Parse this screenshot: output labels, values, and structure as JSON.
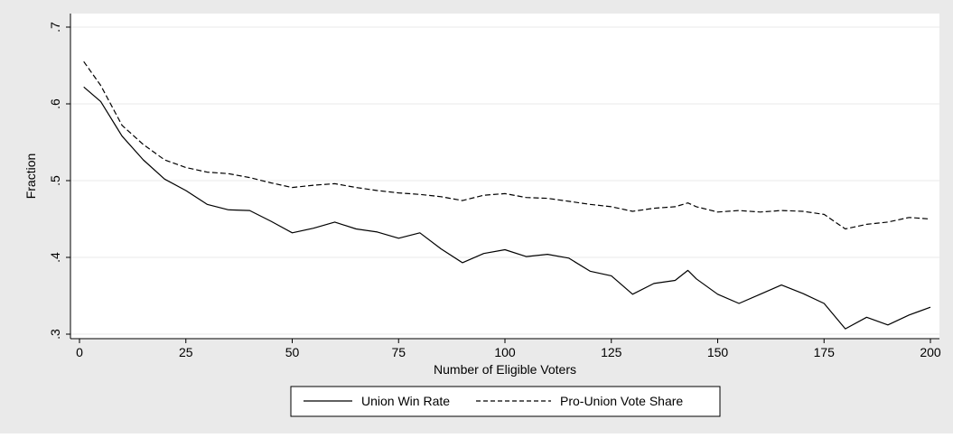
{
  "colors": {
    "outer_background": "#eaeaea",
    "plot_background": "#ffffff",
    "grid": "#eaeaea",
    "line": "#000000"
  },
  "chart_data": {
    "type": "line",
    "title": "",
    "xlabel": "Number of Eligible Voters",
    "ylabel": "Fraction",
    "xlim": [
      0,
      200
    ],
    "ylim": [
      0.3,
      0.7
    ],
    "x_ticks": [
      0,
      25,
      50,
      75,
      100,
      125,
      150,
      175,
      200
    ],
    "x_tick_labels": [
      "0",
      "25",
      "50",
      "75",
      "100",
      "125",
      "150",
      "175",
      "200"
    ],
    "y_ticks": [
      0.3,
      0.4,
      0.5,
      0.6,
      0.7
    ],
    "y_tick_labels": [
      ".3",
      ".4",
      ".5",
      ".6",
      ".7"
    ],
    "grid": true,
    "legend_position": "bottom-center",
    "x": [
      1,
      5,
      10,
      15,
      20,
      25,
      30,
      35,
      40,
      45,
      50,
      55,
      60,
      65,
      70,
      75,
      80,
      85,
      90,
      95,
      100,
      105,
      110,
      115,
      120,
      125,
      130,
      135,
      140,
      143,
      145,
      150,
      155,
      160,
      165,
      170,
      175,
      180,
      185,
      190,
      195,
      200
    ],
    "series": [
      {
        "name": "Union Win Rate",
        "dash": "solid",
        "values": [
          0.622,
          0.603,
          0.558,
          0.527,
          0.502,
          0.487,
          0.469,
          0.462,
          0.461,
          0.447,
          0.432,
          0.438,
          0.446,
          0.437,
          0.433,
          0.425,
          0.432,
          0.411,
          0.393,
          0.405,
          0.41,
          0.401,
          0.404,
          0.399,
          0.382,
          0.376,
          0.352,
          0.366,
          0.37,
          0.383,
          0.372,
          0.352,
          0.34,
          0.352,
          0.364,
          0.353,
          0.34,
          0.307,
          0.322,
          0.312,
          0.325,
          0.335
        ]
      },
      {
        "name": "Pro-Union Vote Share",
        "dash": "dashed",
        "values": [
          0.655,
          0.624,
          0.572,
          0.547,
          0.527,
          0.517,
          0.511,
          0.509,
          0.504,
          0.497,
          0.491,
          0.494,
          0.496,
          0.491,
          0.487,
          0.484,
          0.482,
          0.479,
          0.474,
          0.481,
          0.483,
          0.478,
          0.477,
          0.473,
          0.469,
          0.466,
          0.46,
          0.464,
          0.466,
          0.471,
          0.466,
          0.459,
          0.461,
          0.459,
          0.461,
          0.46,
          0.456,
          0.437,
          0.443,
          0.446,
          0.452,
          0.45
        ]
      }
    ]
  }
}
